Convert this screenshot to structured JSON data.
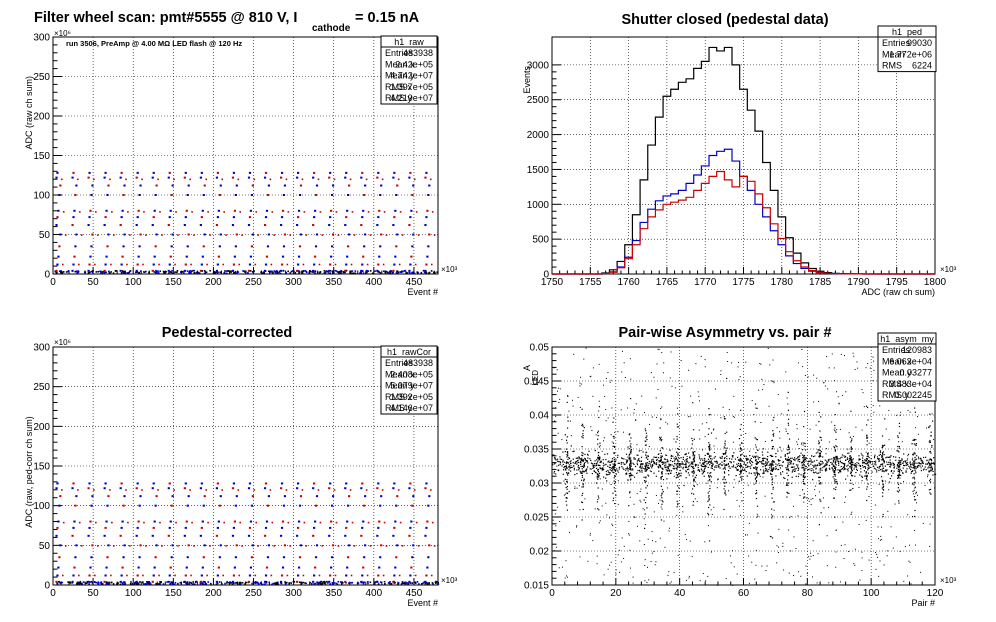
{
  "colors": {
    "red": "#cc0000",
    "blue": "#0000cc",
    "black": "#000000",
    "grid": "#000000"
  },
  "chart_data": [
    {
      "type": "scatter",
      "title_main": "Filter wheel scan: pmt#5555 @   810 V, I",
      "title_sub": "cathode",
      "title_tail": "= 0.15 nA",
      "annotation": "run 3506, PreAmp @ 4.00 MΩ   LED flash @  120 Hz",
      "xlabel": "Event #",
      "ylabel": "ADC (raw ch sum)",
      "x_exponent": "×10³",
      "y_exponent": "×10⁶",
      "xlim": [
        0,
        480
      ],
      "ylim": [
        0,
        300
      ],
      "xticks": [
        0,
        50,
        100,
        150,
        200,
        250,
        300,
        350,
        400,
        450
      ],
      "yticks": [
        0,
        50,
        100,
        150,
        200,
        250,
        300
      ],
      "levels": [
        4,
        12,
        22,
        35,
        50,
        62,
        72,
        80,
        100,
        112,
        122,
        128
      ],
      "stats": {
        "name": "h1_raw",
        "rows": [
          [
            "Entries",
            "483938"
          ],
          [
            "Mean x",
            "2.42e+05"
          ],
          [
            "Mean y",
            "4.742e+07"
          ],
          [
            "RMS x",
            "1.397e+05"
          ],
          [
            "RMS y",
            "4.219e+07"
          ]
        ]
      }
    },
    {
      "type": "line",
      "title": "Shutter closed (pedestal data)",
      "xlabel": "ADC (raw ch sum)",
      "ylabel": "Events",
      "x_exponent": "×10³",
      "xlim": [
        1750,
        1800
      ],
      "ylim": [
        0,
        3400
      ],
      "xticks": [
        1750,
        1755,
        1760,
        1765,
        1770,
        1775,
        1780,
        1785,
        1790,
        1795,
        1800
      ],
      "yticks": [
        0,
        500,
        1000,
        1500,
        2000,
        2500,
        3000
      ],
      "x": [
        1757,
        1758,
        1759,
        1760,
        1761,
        1762,
        1763,
        1764,
        1765,
        1766,
        1767,
        1768,
        1769,
        1770,
        1771,
        1772,
        1773,
        1774,
        1775,
        1776,
        1777,
        1778,
        1779,
        1780,
        1781,
        1782,
        1783,
        1784,
        1785,
        1786,
        1787,
        1788,
        1789,
        1790,
        1791
      ],
      "series": [
        {
          "color": "black",
          "values": [
            15,
            60,
            180,
            420,
            850,
            1350,
            1850,
            2250,
            2550,
            2650,
            2750,
            2800,
            2950,
            3050,
            3250,
            3200,
            3250,
            3000,
            2650,
            2350,
            2050,
            1600,
            1200,
            820,
            520,
            300,
            160,
            80,
            40,
            20,
            10,
            5,
            3,
            2,
            1
          ]
        },
        {
          "color": "blue",
          "values": [
            8,
            30,
            100,
            240,
            480,
            740,
            930,
            1050,
            1120,
            1150,
            1200,
            1300,
            1420,
            1550,
            1700,
            1760,
            1790,
            1620,
            1400,
            1200,
            1000,
            820,
            620,
            420,
            260,
            150,
            80,
            40,
            20,
            10,
            5,
            3,
            2,
            1,
            0
          ]
        },
        {
          "color": "red",
          "values": [
            6,
            25,
            90,
            220,
            420,
            650,
            820,
            920,
            1000,
            1030,
            1060,
            1100,
            1200,
            1300,
            1400,
            1470,
            1350,
            1250,
            1400,
            1330,
            1150,
            950,
            720,
            510,
            320,
            190,
            100,
            50,
            25,
            12,
            6,
            3,
            2,
            1,
            0
          ]
        }
      ],
      "stats": {
        "name": "h1_ped",
        "rows": [
          [
            "Entries",
            "99030"
          ],
          [
            "Mean",
            "1.772e+06"
          ],
          [
            "RMS",
            "6224"
          ]
        ]
      }
    },
    {
      "type": "scatter",
      "title": "Pedestal-corrected",
      "xlabel": "Event #",
      "ylabel": "ADC (raw, ped-corr ch sum)",
      "x_exponent": "×10³",
      "y_exponent": "×10⁶",
      "xlim": [
        0,
        480
      ],
      "ylim": [
        0,
        300
      ],
      "xticks": [
        0,
        50,
        100,
        150,
        200,
        250,
        300,
        350,
        400,
        450
      ],
      "yticks": [
        0,
        50,
        100,
        150,
        200,
        250,
        300
      ],
      "levels": [
        4,
        12,
        22,
        35,
        50,
        62,
        72,
        80,
        100,
        112,
        122,
        128
      ],
      "stats": {
        "name": "h1_rawCor",
        "rows": [
          [
            "Entries",
            "483938"
          ],
          [
            "Mean x",
            "2.408e+05"
          ],
          [
            "Mean y",
            "5.079e+07"
          ],
          [
            "RMS x",
            "1.392e+05"
          ],
          [
            "RMS y",
            "4.146e+07"
          ]
        ]
      }
    },
    {
      "type": "scatter",
      "title": "Pair-wise Asymmetry vs. pair #",
      "xlabel": "Pair #",
      "ylabel": "A",
      "ylabel_sub": "LED",
      "x_exponent": "×10³",
      "xlim": [
        0,
        120
      ],
      "ylim": [
        0.015,
        0.05
      ],
      "xticks": [
        0,
        20,
        40,
        60,
        80,
        100,
        120
      ],
      "yticks": [
        0.015,
        0.02,
        0.025,
        0.03,
        0.035,
        0.04,
        0.045,
        0.05
      ],
      "band_center": 0.0328,
      "band_rms": 0.002245,
      "stats": {
        "name": "h1_asym_my",
        "rows": [
          [
            "Entries",
            "120983"
          ],
          [
            "Mean x",
            "6.063e+04"
          ],
          [
            "Mean y",
            "0.03277"
          ],
          [
            "RMS x",
            "3.483e+04"
          ],
          [
            "RMS y",
            "0.002245"
          ]
        ]
      }
    }
  ]
}
